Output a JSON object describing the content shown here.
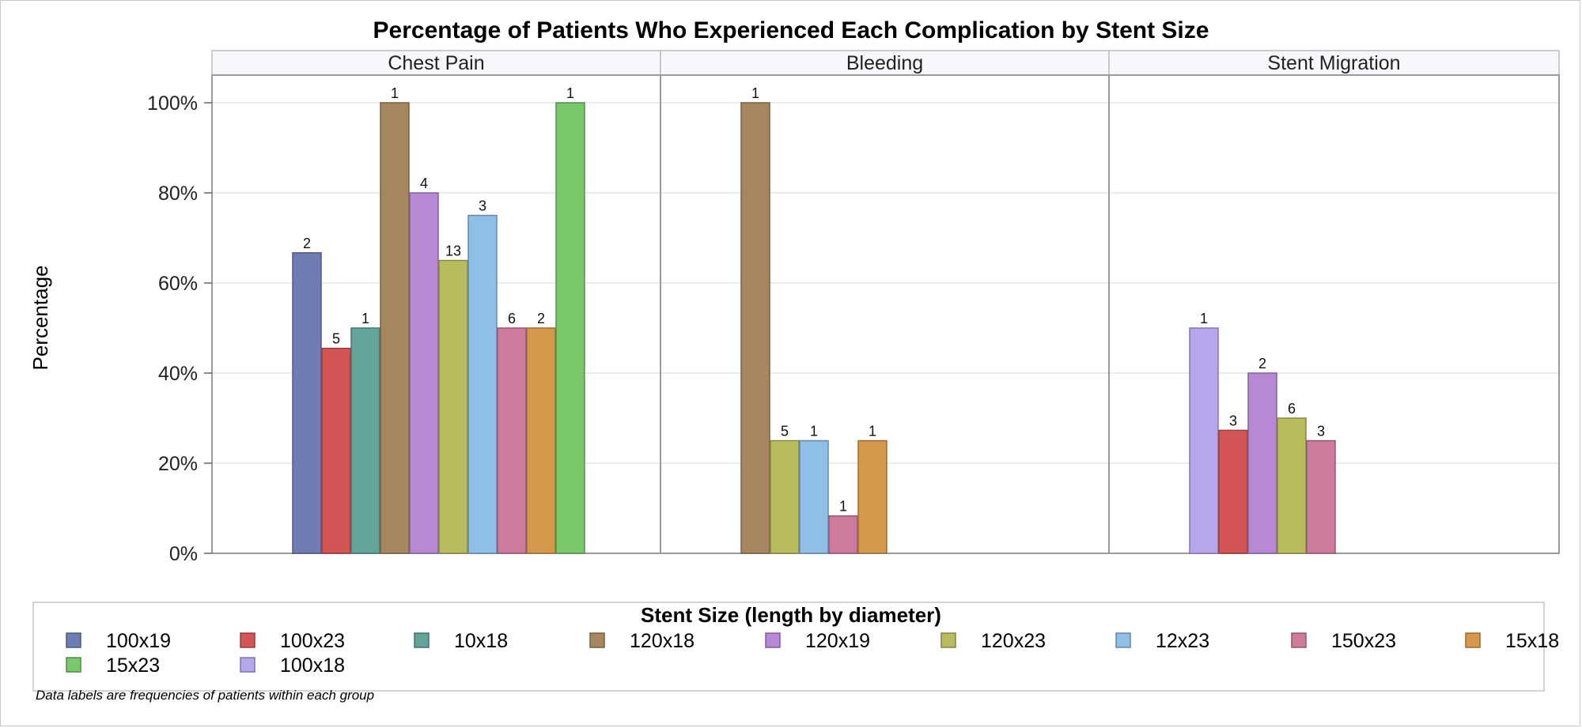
{
  "chart_data": {
    "type": "bar",
    "title": "Percentage of Patients Who Experienced Each Complication by Stent Size",
    "ylabel": "Percentage",
    "ylim": [
      0,
      100
    ],
    "yticks": [
      "0%",
      "20%",
      "40%",
      "60%",
      "80%",
      "100%"
    ],
    "grid": true,
    "legend": {
      "title": "Stent Size (length by diameter)",
      "placement": "bottom",
      "entries": [
        {
          "name": "100x19",
          "color": "#6f7db3"
        },
        {
          "name": "100x23",
          "color": "#d35654"
        },
        {
          "name": "10x18",
          "color": "#63a49a"
        },
        {
          "name": "120x18",
          "color": "#a6865e"
        },
        {
          "name": "120x19",
          "color": "#b788d4"
        },
        {
          "name": "120x23",
          "color": "#b9bb5f"
        },
        {
          "name": "12x23",
          "color": "#8fbfe6"
        },
        {
          "name": "150x23",
          "color": "#cd7b9c"
        },
        {
          "name": "15x18",
          "color": "#d6984a"
        },
        {
          "name": "15x23",
          "color": "#79c86b"
        },
        {
          "name": "100x18",
          "color": "#b7a6ec"
        }
      ]
    },
    "panels": [
      {
        "label": "Chest Pain",
        "bars": [
          {
            "series": "100x19",
            "value": 66.7,
            "label": "2"
          },
          {
            "series": "100x23",
            "value": 45.5,
            "label": "5"
          },
          {
            "series": "10x18",
            "value": 50,
            "label": "1"
          },
          {
            "series": "120x18",
            "value": 100,
            "label": "1"
          },
          {
            "series": "120x19",
            "value": 80,
            "label": "4"
          },
          {
            "series": "120x23",
            "value": 65,
            "label": "13"
          },
          {
            "series": "12x23",
            "value": 75,
            "label": "3"
          },
          {
            "series": "150x23",
            "value": 50,
            "label": "6"
          },
          {
            "series": "15x18",
            "value": 50,
            "label": "2"
          },
          {
            "series": "15x23",
            "value": 100,
            "label": "1"
          }
        ]
      },
      {
        "label": "Bleeding",
        "bars": [
          {
            "series": "120x18",
            "value": 100,
            "label": "1"
          },
          {
            "series": "120x23",
            "value": 25,
            "label": "5"
          },
          {
            "series": "12x23",
            "value": 25,
            "label": "1"
          },
          {
            "series": "150x23",
            "value": 8.3,
            "label": "1"
          },
          {
            "series": "15x18",
            "value": 25,
            "label": "1"
          }
        ]
      },
      {
        "label": "Stent Migration",
        "bars": [
          {
            "series": "100x18",
            "value": 50,
            "label": "1"
          },
          {
            "series": "100x23",
            "value": 27.3,
            "label": "3"
          },
          {
            "series": "120x19",
            "value": 40,
            "label": "2"
          },
          {
            "series": "120x23",
            "value": 30,
            "label": "6"
          },
          {
            "series": "150x23",
            "value": 25,
            "label": "3"
          }
        ]
      }
    ],
    "footnote": "Data labels are frequencies of patients within each group"
  }
}
